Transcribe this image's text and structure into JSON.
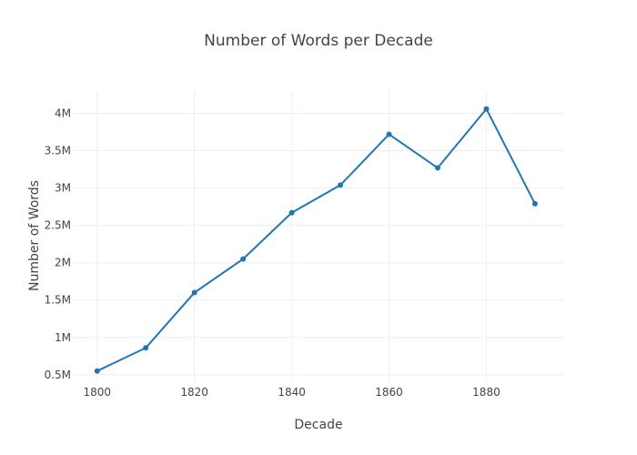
{
  "chart_data": {
    "type": "line",
    "title": "Number of Words per Decade",
    "xlabel": "Decade",
    "ylabel": "Number of Words",
    "x": [
      1800,
      1810,
      1820,
      1830,
      1840,
      1850,
      1860,
      1870,
      1880,
      1890
    ],
    "series": [
      {
        "values": [
          550000,
          860000,
          1600000,
          2050000,
          2670000,
          3040000,
          3720000,
          3270000,
          4060000,
          2790000
        ],
        "color": "#1f77b4"
      }
    ],
    "xlim": [
      1795,
      1896
    ],
    "ylim": [
      400000,
      4300000
    ],
    "x_ticks": [
      1800,
      1820,
      1840,
      1860,
      1880
    ],
    "x_tick_labels": [
      "1800",
      "1820",
      "1840",
      "1860",
      "1880"
    ],
    "y_ticks": [
      500000,
      1000000,
      1500000,
      2000000,
      2500000,
      3000000,
      3500000,
      4000000
    ],
    "y_tick_labels": [
      "0.5M",
      "1M",
      "1.5M",
      "2M",
      "2.5M",
      "3M",
      "3.5M",
      "4M"
    ],
    "grid": true,
    "legend": false
  }
}
